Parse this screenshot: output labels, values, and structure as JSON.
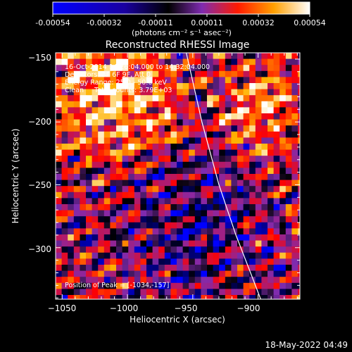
{
  "colorbar": {
    "ticks": [
      "-0.00054",
      "-0.00032",
      "-0.00011",
      "0.00011",
      "0.00032",
      "0.00054"
    ],
    "unit_label": "(photons cm⁻² s⁻¹ asec⁻²)"
  },
  "annotations": {
    "line1": "16-Oct-2014 14:26:04.000 to 14:32:04.000",
    "line2": "Detectors: 3F 6F 9F, Att 0",
    "line3": "Energy Range: 25.0 - 50.0 keV",
    "line4": "Clean     Total counts: 3.79E+03",
    "peak": "Position of Peak = [-1034,-157]"
  },
  "footer": {
    "timestamp": "18-May-2022 04:49"
  },
  "chart_data": {
    "type": "heatmap",
    "title": "Reconstructed RHESSI Image",
    "xlabel": "Heliocentric X (arcsec)",
    "ylabel": "Heliocentric Y (arcsec)",
    "xlim": [
      -1055,
      -868
    ],
    "ylim": [
      -341,
      -145
    ],
    "xticks": [
      -1050,
      -1000,
      -950,
      -900
    ],
    "yticks": [
      -150,
      -200,
      -250,
      -300
    ],
    "xtick_labels": [
      "−1050",
      "−1000",
      "−950",
      "−900"
    ],
    "ytick_labels": [
      "−150",
      "−200",
      "−250",
      "−300"
    ],
    "value_range": [
      -0.00054,
      0.00054
    ],
    "colormap": [
      "#0000ff",
      "#000000",
      "#7f2bb0",
      "#ff0000",
      "#ffb300",
      "#ffffff"
    ],
    "limb_line": {
      "x": [
        -955,
        -943,
        -930,
        -917,
        -905,
        -898
      ],
      "y": [
        -145,
        -200,
        -250,
        -290,
        -322,
        -341
      ]
    },
    "peak_position": [
      -1034,
      -157
    ]
  }
}
